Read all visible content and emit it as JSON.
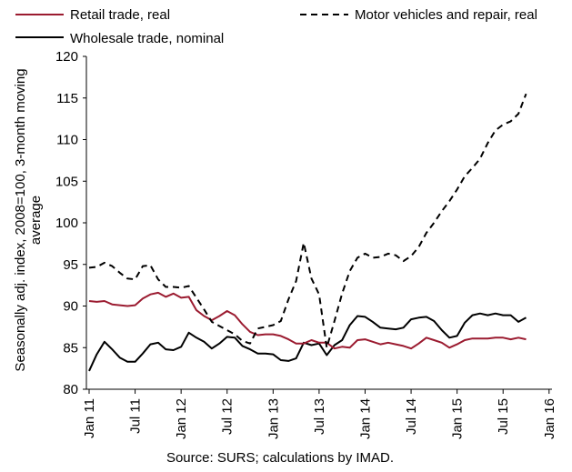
{
  "source": "Source: SURS; calculations by IMAD.",
  "chart_data": {
    "type": "line",
    "title": "",
    "xlabel": "",
    "ylabel": "Seasonally adj. index, 2008=100, 3-month moving average",
    "ylim": [
      80,
      120
    ],
    "yticks": [
      80,
      85,
      90,
      95,
      100,
      105,
      110,
      115,
      120
    ],
    "grid": false,
    "legend_position": "top",
    "x_tick_labels": [
      "Jan 11",
      "Jul 11",
      "Jan 12",
      "Jul 12",
      "Jan 13",
      "Jul 13",
      "Jan 14",
      "Jul 14",
      "Jan 15",
      "Jul 15",
      "Jan 16"
    ],
    "x_start": "2011-01",
    "x": [
      "2011-01",
      "2011-02",
      "2011-03",
      "2011-04",
      "2011-05",
      "2011-06",
      "2011-07",
      "2011-08",
      "2011-09",
      "2011-10",
      "2011-11",
      "2011-12",
      "2012-01",
      "2012-02",
      "2012-03",
      "2012-04",
      "2012-05",
      "2012-06",
      "2012-07",
      "2012-08",
      "2012-09",
      "2012-10",
      "2012-11",
      "2012-12",
      "2013-01",
      "2013-02",
      "2013-03",
      "2013-04",
      "2013-05",
      "2013-06",
      "2013-07",
      "2013-08",
      "2013-09",
      "2013-10",
      "2013-11",
      "2013-12",
      "2014-01",
      "2014-02",
      "2014-03",
      "2014-04",
      "2014-05",
      "2014-06",
      "2014-07",
      "2014-08",
      "2014-09",
      "2014-10",
      "2014-11",
      "2014-12",
      "2015-01",
      "2015-02",
      "2015-03",
      "2015-04",
      "2015-05",
      "2015-06",
      "2015-07",
      "2015-08",
      "2015-09",
      "2015-10"
    ],
    "series": [
      {
        "name": "Retail trade, real",
        "color": "#9b1b30",
        "style": "solid",
        "values": [
          90.6,
          90.5,
          90.6,
          90.2,
          90.1,
          90.0,
          90.1,
          90.9,
          91.4,
          91.6,
          91.1,
          91.5,
          91.0,
          91.1,
          89.5,
          88.8,
          88.3,
          88.8,
          89.4,
          88.9,
          87.8,
          86.9,
          86.5,
          86.6,
          86.6,
          86.4,
          86.0,
          85.5,
          85.5,
          85.9,
          85.6,
          85.6,
          84.9,
          85.1,
          85.0,
          85.9,
          86.0,
          85.7,
          85.4,
          85.6,
          85.4,
          85.2,
          84.9,
          85.5,
          86.2,
          85.9,
          85.6,
          85.0,
          85.4,
          85.9,
          86.1,
          86.1,
          86.1,
          86.2,
          86.2,
          86.0,
          86.2,
          86.0
        ]
      },
      {
        "name": "Wholesale trade, nominal",
        "color": "#000000",
        "style": "solid",
        "values": [
          82.2,
          84.2,
          85.7,
          84.8,
          83.8,
          83.3,
          83.3,
          84.3,
          85.4,
          85.6,
          84.8,
          84.7,
          85.1,
          86.8,
          86.2,
          85.7,
          84.9,
          85.5,
          86.3,
          86.2,
          85.2,
          84.8,
          84.3,
          84.3,
          84.2,
          83.5,
          83.4,
          83.7,
          85.6,
          85.3,
          85.5,
          84.1,
          85.3,
          85.9,
          87.7,
          88.8,
          88.7,
          88.1,
          87.4,
          87.3,
          87.2,
          87.4,
          88.4,
          88.6,
          88.7,
          88.2,
          87.1,
          86.2,
          86.4,
          88.0,
          88.9,
          89.1,
          88.9,
          89.1,
          88.9,
          88.9,
          88.1,
          88.6
        ]
      },
      {
        "name": "Motor vehicles and repair, real",
        "color": "#000000",
        "style": "dashed",
        "values": [
          94.6,
          94.7,
          95.2,
          94.8,
          94.0,
          93.3,
          93.2,
          94.8,
          94.9,
          93.2,
          92.3,
          92.3,
          92.2,
          92.4,
          91.0,
          89.6,
          88.1,
          87.6,
          87.1,
          86.6,
          85.8,
          85.5,
          87.3,
          87.5,
          87.7,
          88.2,
          90.8,
          93.0,
          97.6,
          93.3,
          91.4,
          85.0,
          88.2,
          91.5,
          94.2,
          95.8,
          96.3,
          95.8,
          95.9,
          96.3,
          96.1,
          95.4,
          96.0,
          97.1,
          98.8,
          100.0,
          101.4,
          102.6,
          104.0,
          105.6,
          106.6,
          107.7,
          109.6,
          111.1,
          111.8,
          112.2,
          113.1,
          115.5
        ]
      }
    ]
  }
}
